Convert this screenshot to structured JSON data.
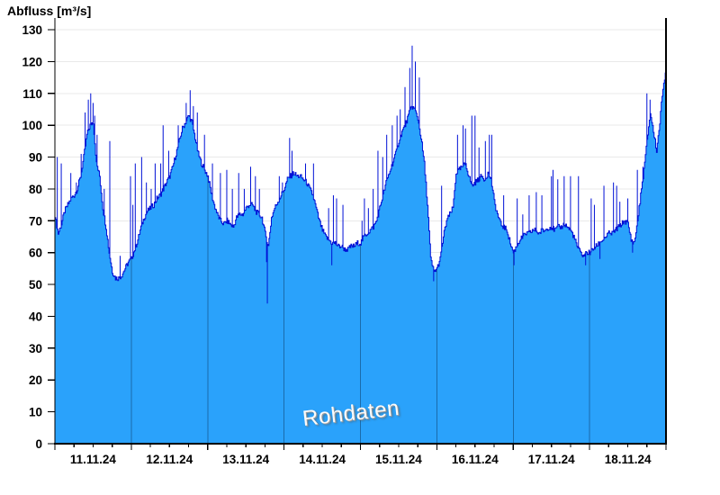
{
  "title": "Abfluss [m³/s]",
  "watermark": "Rohdaten",
  "colors": {
    "fill": "#2AA2FB",
    "line": "#0011D6",
    "grid": "#E9E9E9",
    "axis": "#000000",
    "day_separator": "rgba(13,62,105,0.55)",
    "background": "#FFFFFF",
    "text": "#000000"
  },
  "chart_data": {
    "type": "area",
    "title": "Abfluss [m³/s]",
    "ylabel": "Abfluss [m³/s]",
    "xlabel": "",
    "ylim": [
      0,
      130
    ],
    "y_ticks": [
      0,
      10,
      20,
      30,
      40,
      50,
      60,
      70,
      80,
      90,
      100,
      110,
      120,
      130
    ],
    "x_labels": [
      "11.11.24",
      "12.11.24",
      "13.11.24",
      "14.11.24",
      "15.11.24",
      "16.11.24",
      "17.11.24",
      "18.11.24"
    ],
    "hours_total": 192,
    "hours_per_day": 24,
    "minor_tick_hours": 6,
    "grid": "horizontal",
    "legend": "none",
    "annotation": "Rohdaten",
    "base_hourly": [
      71,
      66,
      69,
      73,
      75,
      77,
      78,
      80,
      84,
      90,
      97,
      100,
      101,
      88,
      84,
      74,
      68,
      60,
      54,
      52,
      52,
      53,
      55,
      57,
      58,
      61,
      64,
      68,
      71,
      73,
      74,
      75,
      77,
      78,
      80,
      82,
      84,
      87,
      91,
      95,
      99,
      101,
      103,
      101,
      96,
      91,
      88,
      86,
      84,
      79,
      75,
      72,
      70,
      69,
      70,
      69,
      68,
      71,
      72,
      72,
      74,
      75,
      75,
      73,
      72,
      71,
      66,
      62,
      71,
      74,
      76,
      78,
      80,
      83,
      84,
      85,
      84,
      84,
      83,
      82,
      80,
      78,
      74,
      70,
      67,
      65,
      64,
      63,
      63,
      62,
      62,
      61,
      61,
      62,
      62,
      63,
      63,
      65,
      66,
      67,
      68,
      70,
      74,
      78,
      82,
      85,
      88,
      91,
      95,
      98,
      100,
      103,
      106,
      105,
      102,
      96,
      88,
      75,
      58,
      54,
      55,
      58,
      65,
      70,
      72,
      74,
      85,
      86,
      87,
      88,
      84,
      81,
      82,
      83,
      84,
      83,
      85,
      83,
      76,
      72,
      69,
      68,
      67,
      63,
      60,
      62,
      64,
      65,
      66,
      66,
      67,
      67,
      66,
      67,
      67,
      68,
      68,
      67,
      68,
      68,
      69,
      68,
      67,
      65,
      62,
      60,
      59,
      60,
      60,
      61,
      62,
      63,
      64,
      65,
      66,
      66,
      67,
      68,
      69,
      70,
      69,
      64,
      63,
      70,
      78,
      86,
      95,
      104,
      98,
      92,
      101,
      112,
      118
    ],
    "spikes": [
      [
        0.7,
        90
      ],
      [
        2.1,
        88
      ],
      [
        4.9,
        85
      ],
      [
        6.8,
        82
      ],
      [
        8.3,
        91
      ],
      [
        9.6,
        104
      ],
      [
        10.4,
        108
      ],
      [
        11.2,
        110
      ],
      [
        11.9,
        107
      ],
      [
        12.6,
        103
      ],
      [
        13.3,
        97
      ],
      [
        15.4,
        80
      ],
      [
        17.2,
        95
      ],
      [
        20.6,
        59
      ],
      [
        23.7,
        84
      ],
      [
        24.6,
        75
      ],
      [
        25.2,
        88
      ],
      [
        27.2,
        90
      ],
      [
        28.8,
        82
      ],
      [
        30.2,
        80
      ],
      [
        31.4,
        88
      ],
      [
        33.2,
        88
      ],
      [
        33.9,
        100
      ],
      [
        35.8,
        92
      ],
      [
        38.8,
        100
      ],
      [
        41.3,
        107
      ],
      [
        42.4,
        111
      ],
      [
        43.6,
        106
      ],
      [
        44.7,
        104
      ],
      [
        46.9,
        97
      ],
      [
        49.6,
        88
      ],
      [
        52.1,
        85
      ],
      [
        54.1,
        86
      ],
      [
        55.8,
        80
      ],
      [
        57.7,
        85
      ],
      [
        59.6,
        80
      ],
      [
        61.4,
        87
      ],
      [
        62.9,
        84
      ],
      [
        64.3,
        80
      ],
      [
        66.4,
        57
      ],
      [
        66.8,
        44
      ],
      [
        70.4,
        84
      ],
      [
        71.4,
        82
      ],
      [
        73.8,
        96
      ],
      [
        74.6,
        92
      ],
      [
        78.7,
        88
      ],
      [
        81.2,
        88
      ],
      [
        86.1,
        74
      ],
      [
        87.1,
        56
      ],
      [
        87.5,
        78
      ],
      [
        88.4,
        77
      ],
      [
        90.5,
        75
      ],
      [
        96.4,
        70
      ],
      [
        97.2,
        77
      ],
      [
        98.6,
        74
      ],
      [
        100.1,
        80
      ],
      [
        101.5,
        92
      ],
      [
        103.1,
        90
      ],
      [
        104.3,
        97
      ],
      [
        106.1,
        100
      ],
      [
        107.6,
        103
      ],
      [
        108.6,
        105
      ],
      [
        110.1,
        112
      ],
      [
        111.4,
        118
      ],
      [
        112.3,
        125
      ],
      [
        113.2,
        120
      ],
      [
        114.4,
        115
      ],
      [
        119.1,
        51
      ],
      [
        121.4,
        81
      ],
      [
        126.6,
        97
      ],
      [
        128.2,
        100
      ],
      [
        128.9,
        99
      ],
      [
        131.1,
        103
      ],
      [
        131.9,
        103
      ],
      [
        133.2,
        93
      ],
      [
        135.2,
        95
      ],
      [
        136.6,
        97
      ],
      [
        137.2,
        97
      ],
      [
        141.1,
        78
      ],
      [
        144.3,
        56
      ],
      [
        145.2,
        77
      ],
      [
        147.1,
        72
      ],
      [
        149.1,
        78
      ],
      [
        151.3,
        79
      ],
      [
        153.1,
        78
      ],
      [
        155.9,
        84
      ],
      [
        156.6,
        86
      ],
      [
        158.1,
        83
      ],
      [
        160.1,
        84
      ],
      [
        162.1,
        84
      ],
      [
        164.5,
        84
      ],
      [
        166.8,
        56
      ],
      [
        168.6,
        77
      ],
      [
        169.4,
        75
      ],
      [
        171.2,
        58
      ],
      [
        172.5,
        81
      ],
      [
        175.4,
        82
      ],
      [
        176.5,
        81
      ],
      [
        177.4,
        76
      ],
      [
        179.9,
        77
      ],
      [
        181.5,
        60
      ],
      [
        182.9,
        86
      ],
      [
        184.8,
        87
      ],
      [
        186.1,
        110
      ],
      [
        186.9,
        108
      ]
    ]
  }
}
